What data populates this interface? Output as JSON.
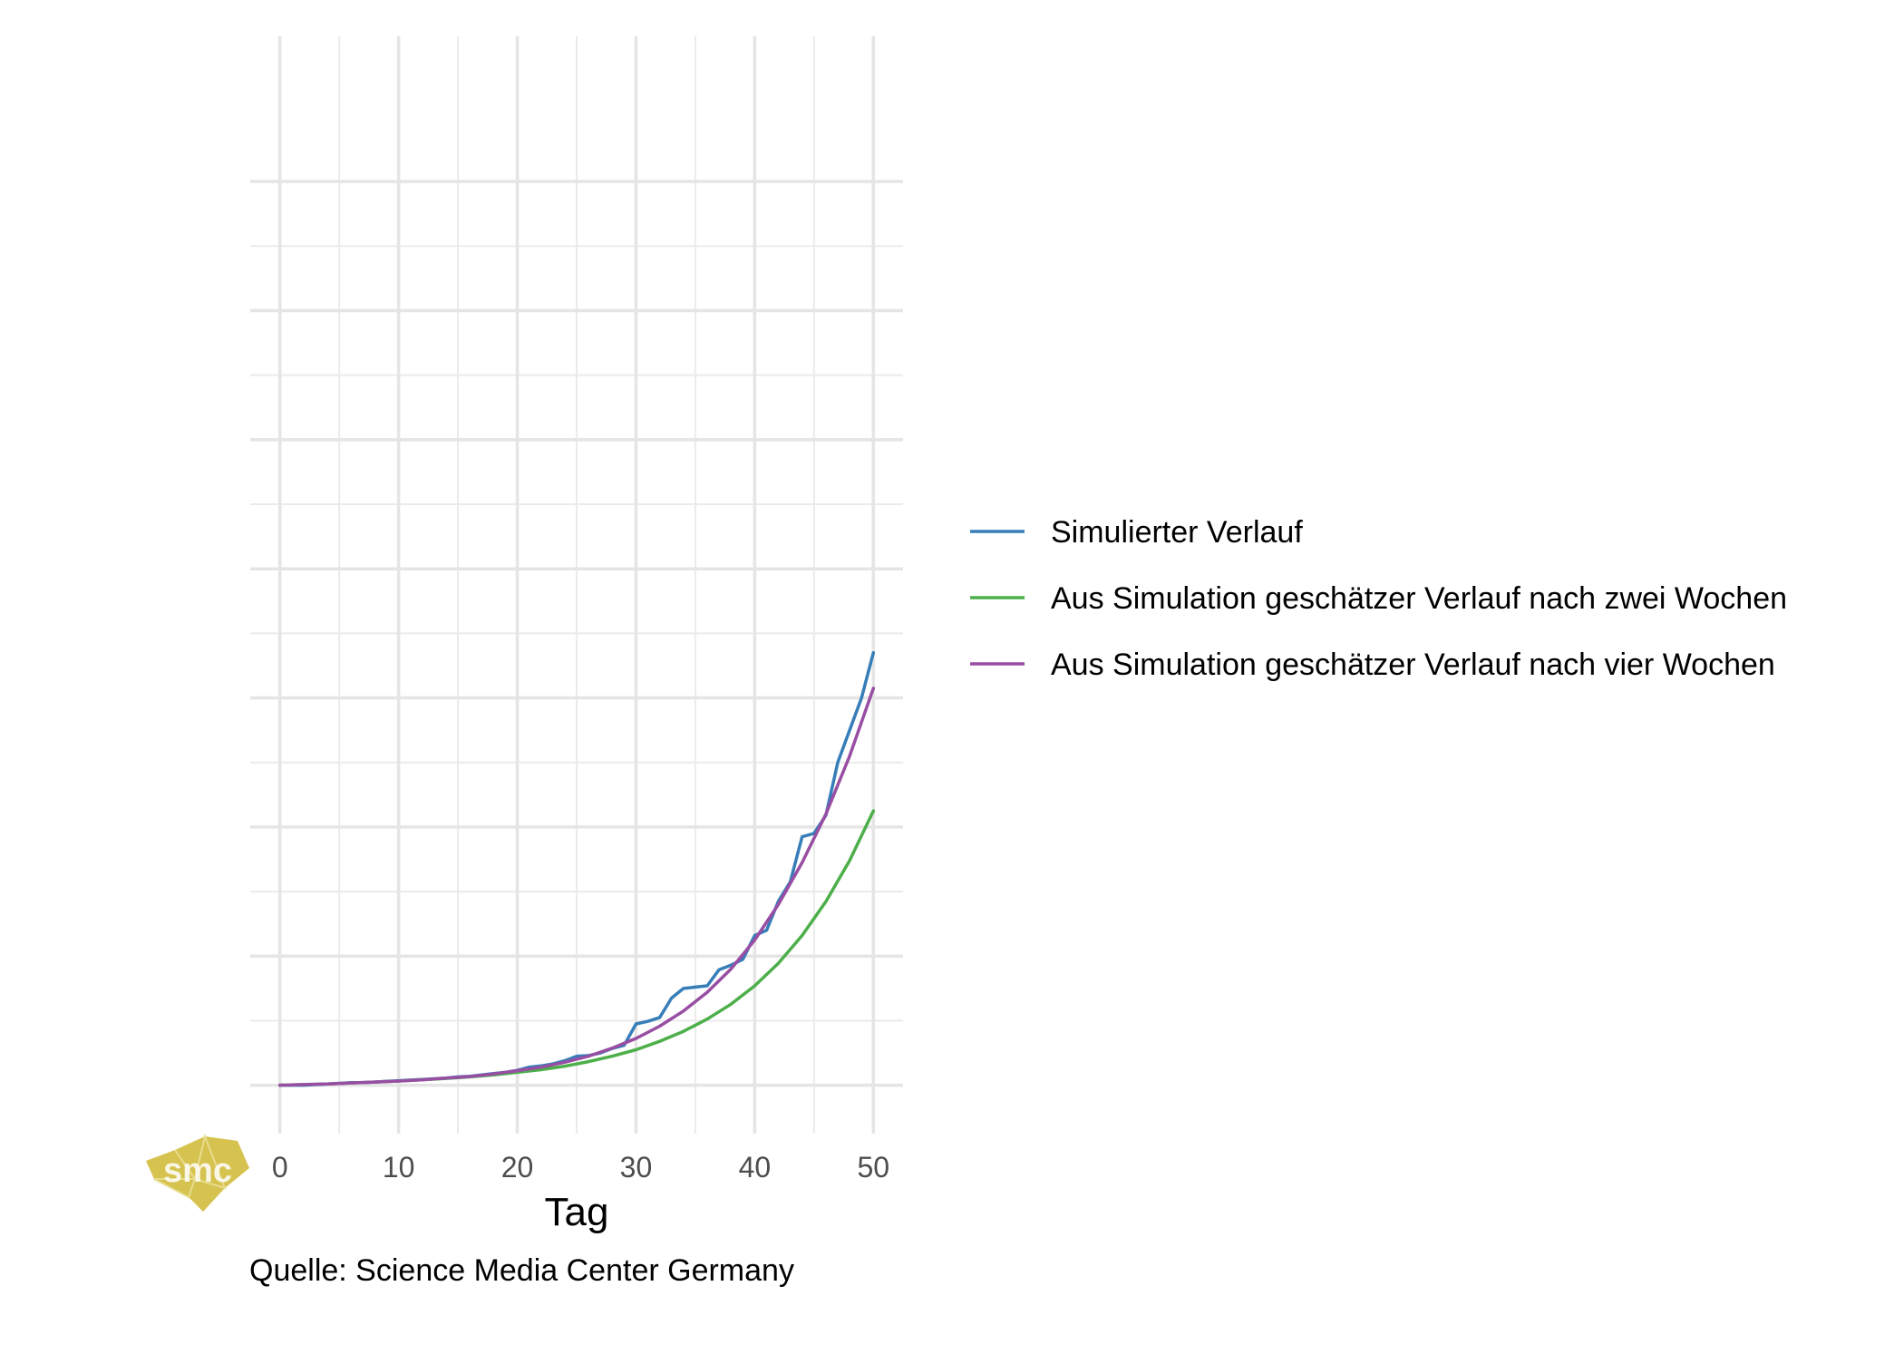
{
  "chart_data": {
    "type": "line",
    "title": "",
    "xlabel": "Tag",
    "ylabel": "",
    "xlim": [
      -2.5,
      52.5
    ],
    "ylim": [
      -1.5,
      32.5
    ],
    "x_ticks": [
      0,
      10,
      20,
      30,
      40,
      50
    ],
    "x_tick_labels": [
      "0",
      "10",
      "20",
      "30",
      "40",
      "50"
    ],
    "y_gridlines": [
      0,
      4,
      8,
      12,
      16,
      20,
      24,
      28
    ],
    "y_tick_labels_visible": false,
    "grid": true,
    "legend_position": "right",
    "caption": "Quelle: Science Media Center Germany",
    "logo_text": "smc",
    "series": [
      {
        "name": "Simulierter Verlauf",
        "color": "#377EB8",
        "x": [
          0,
          1,
          2,
          3,
          4,
          5,
          6,
          7,
          8,
          9,
          10,
          11,
          12,
          13,
          14,
          15,
          16,
          17,
          18,
          19,
          20,
          21,
          22,
          23,
          24,
          25,
          26,
          27,
          28,
          29,
          30,
          31,
          32,
          33,
          34,
          35,
          36,
          37,
          38,
          39,
          40,
          41,
          42,
          43,
          44,
          45,
          46,
          47,
          48,
          49,
          50
        ],
        "y": [
          0,
          0,
          0,
          0.02,
          0.04,
          0.06,
          0.08,
          0.08,
          0.1,
          0.12,
          0.14,
          0.16,
          0.18,
          0.2,
          0.22,
          0.26,
          0.28,
          0.32,
          0.36,
          0.4,
          0.46,
          0.56,
          0.6,
          0.66,
          0.76,
          0.9,
          0.92,
          1.0,
          1.14,
          1.24,
          1.9,
          1.98,
          2.1,
          2.7,
          3.0,
          3.04,
          3.08,
          3.58,
          3.72,
          3.9,
          4.64,
          4.8,
          5.7,
          6.3,
          7.7,
          7.8,
          8.36,
          10.0,
          11.0,
          12.0,
          13.4
        ]
      },
      {
        "name": "Aus Simulation geschätzer Verlauf nach zwei Wochen",
        "color": "#4DAF4A",
        "x": [
          0,
          2,
          4,
          6,
          8,
          10,
          12,
          14,
          16,
          18,
          20,
          22,
          24,
          26,
          28,
          30,
          32,
          34,
          36,
          38,
          40,
          42,
          44,
          46,
          48,
          50
        ],
        "y": [
          0,
          0.02,
          0.04,
          0.07,
          0.1,
          0.13,
          0.17,
          0.21,
          0.26,
          0.32,
          0.4,
          0.48,
          0.59,
          0.73,
          0.9,
          1.1,
          1.36,
          1.67,
          2.05,
          2.51,
          3.08,
          3.78,
          4.64,
          5.69,
          6.96,
          8.5
        ]
      },
      {
        "name": "Aus Simulation geschätzer Verlauf nach vier Wochen",
        "color": "#984EA3",
        "x": [
          0,
          2,
          4,
          6,
          8,
          10,
          12,
          14,
          16,
          18,
          20,
          22,
          24,
          26,
          28,
          30,
          32,
          34,
          36,
          38,
          40,
          42,
          44,
          46,
          48,
          50
        ],
        "y": [
          0,
          0.02,
          0.04,
          0.07,
          0.1,
          0.13,
          0.17,
          0.22,
          0.27,
          0.35,
          0.45,
          0.56,
          0.71,
          0.9,
          1.15,
          1.45,
          1.83,
          2.3,
          2.88,
          3.6,
          4.5,
          5.6,
          6.9,
          8.4,
          10.2,
          12.3
        ]
      }
    ]
  }
}
